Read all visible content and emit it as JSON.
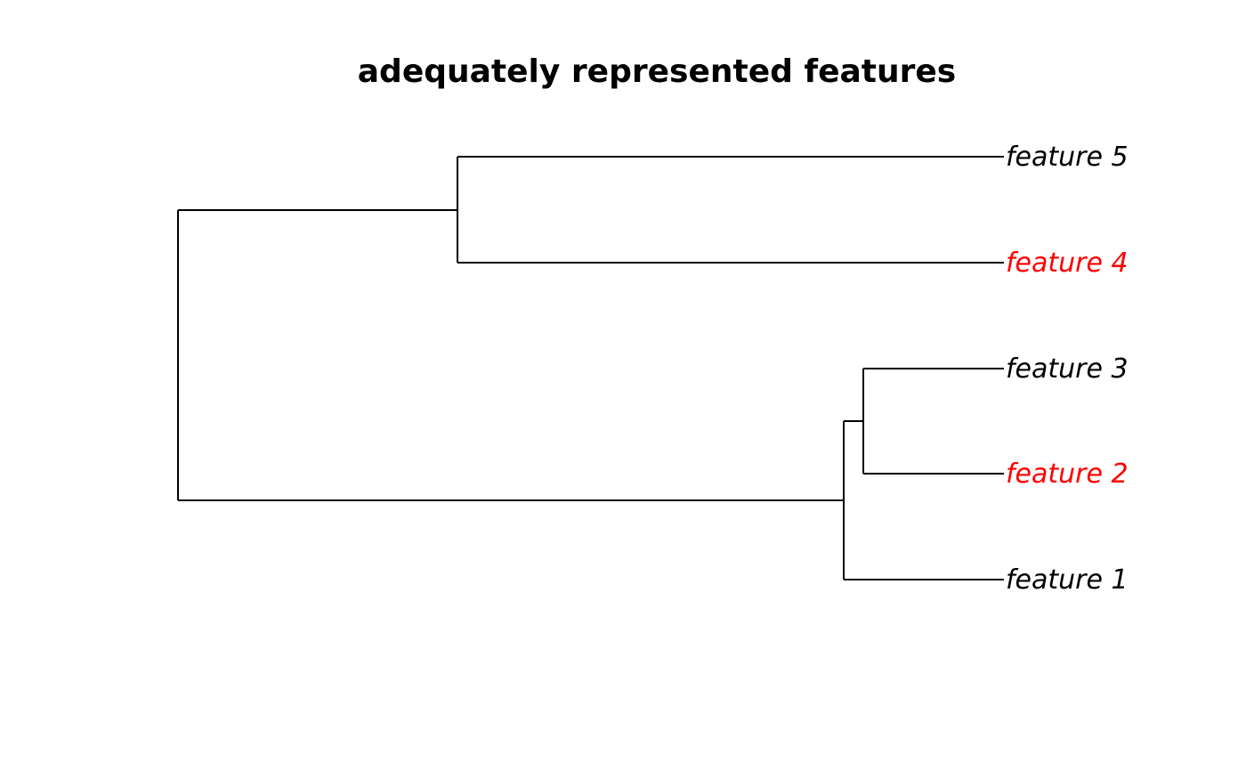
{
  "title": "adequately represented features",
  "tree": {
    "tips": [
      {
        "label": "feature 5",
        "color": "#000000"
      },
      {
        "label": "feature 4",
        "color": "#ff0000"
      },
      {
        "label": "feature 3",
        "color": "#000000"
      },
      {
        "label": "feature 2",
        "color": "#ff0000"
      },
      {
        "label": "feature 1",
        "color": "#000000"
      }
    ]
  }
}
